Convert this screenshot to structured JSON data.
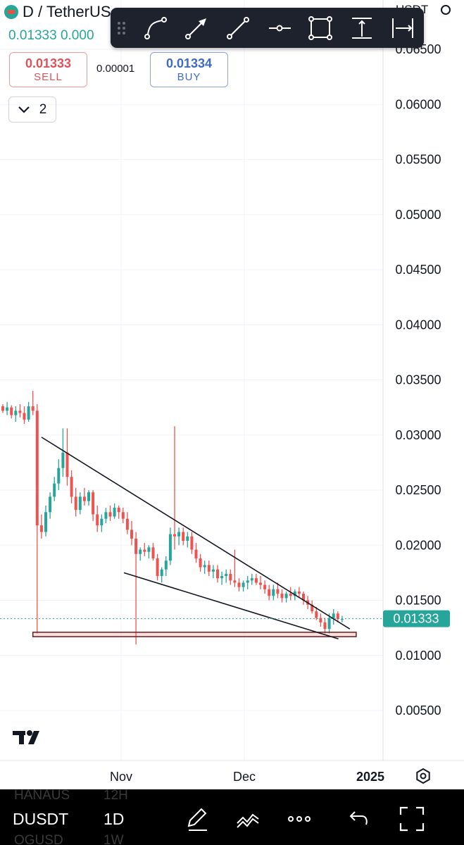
{
  "header": {
    "title": "D / TetherUS",
    "last_price": "0.01333 0.000",
    "sell": {
      "value": "0.01333",
      "label": "SELL"
    },
    "buy": {
      "value": "0.01334",
      "label": "BUY"
    },
    "spread": "0.00001",
    "collapse_count": "2"
  },
  "top_right_label": "USDT",
  "drawing_tools": [
    "path-icon",
    "arrow-line-icon",
    "trend-line-icon",
    "horizontal-ray-icon",
    "rectangle-icon",
    "price-range-icon",
    "date-range-icon"
  ],
  "bottom_bar": {
    "symbol": "DUSDT",
    "interval": "1D",
    "ghost_above": [
      "HANAUS",
      "12H"
    ],
    "ghost_below": [
      "OGUSD",
      "1W"
    ],
    "icons": [
      "draw-pen-icon",
      "indicators-icon",
      "more-icon",
      "undo-icon",
      "fullscreen-icon"
    ]
  },
  "colors": {
    "up": "#26a69a",
    "down": "#ef5350",
    "toolbar": "#1e222d",
    "price_tag": "#26a69a"
  },
  "chart_data": {
    "type": "candlestick",
    "symbol": "D / TetherUS",
    "y_ticks": [
      "0.06500",
      "0.06000",
      "0.05500",
      "0.05000",
      "0.04500",
      "0.04000",
      "0.03500",
      "0.03000",
      "0.02500",
      "0.02000",
      "0.01500",
      "0.01000",
      "0.00500"
    ],
    "ylim": [
      0.0025,
      0.0665
    ],
    "x_ticks": [
      "Nov",
      "Dec",
      "2025"
    ],
    "current_price": "0.01333",
    "candles": [
      [
        0.0326,
        0.0328,
        0.032,
        0.0322
      ],
      [
        0.0322,
        0.033,
        0.0318,
        0.0325
      ],
      [
        0.0325,
        0.0327,
        0.0315,
        0.0318
      ],
      [
        0.0318,
        0.0326,
        0.0312,
        0.0322
      ],
      [
        0.0322,
        0.0328,
        0.0316,
        0.032
      ],
      [
        0.032,
        0.0326,
        0.031,
        0.0314
      ],
      [
        0.0314,
        0.033,
        0.0312,
        0.0326
      ],
      [
        0.0326,
        0.034,
        0.0318,
        0.0322
      ],
      [
        0.0322,
        0.0328,
        0.012,
        0.0218
      ],
      [
        0.0218,
        0.0228,
        0.0206,
        0.0212
      ],
      [
        0.0212,
        0.0236,
        0.0208,
        0.023
      ],
      [
        0.023,
        0.0248,
        0.0224,
        0.0244
      ],
      [
        0.0244,
        0.0262,
        0.024,
        0.0256
      ],
      [
        0.0256,
        0.0278,
        0.025,
        0.027
      ],
      [
        0.027,
        0.0306,
        0.0262,
        0.0284
      ],
      [
        0.0284,
        0.0306,
        0.0254,
        0.0262
      ],
      [
        0.0262,
        0.0268,
        0.0238,
        0.0244
      ],
      [
        0.0244,
        0.0252,
        0.0226,
        0.0232
      ],
      [
        0.0232,
        0.0248,
        0.0228,
        0.0244
      ],
      [
        0.0244,
        0.0252,
        0.0236,
        0.024
      ],
      [
        0.024,
        0.025,
        0.0236,
        0.0248
      ],
      [
        0.0248,
        0.025,
        0.0222,
        0.0228
      ],
      [
        0.0228,
        0.0236,
        0.0212,
        0.0218
      ],
      [
        0.0218,
        0.0228,
        0.0212,
        0.0224
      ],
      [
        0.0224,
        0.0234,
        0.022,
        0.023
      ],
      [
        0.023,
        0.0236,
        0.0222,
        0.0226
      ],
      [
        0.0226,
        0.0238,
        0.0224,
        0.0234
      ],
      [
        0.0234,
        0.0236,
        0.0224,
        0.023
      ],
      [
        0.023,
        0.0234,
        0.022,
        0.0224
      ],
      [
        0.0224,
        0.023,
        0.021,
        0.0214
      ],
      [
        0.0214,
        0.0222,
        0.02,
        0.0206
      ],
      [
        0.0206,
        0.0212,
        0.011,
        0.0192
      ],
      [
        0.0192,
        0.0198,
        0.0186,
        0.0196
      ],
      [
        0.0196,
        0.0202,
        0.019,
        0.0194
      ],
      [
        0.0194,
        0.02,
        0.0188,
        0.0198
      ],
      [
        0.0198,
        0.0202,
        0.0186,
        0.0188
      ],
      [
        0.0188,
        0.0192,
        0.0168,
        0.0172
      ],
      [
        0.0172,
        0.018,
        0.0166,
        0.0178
      ],
      [
        0.0178,
        0.019,
        0.0172,
        0.0186
      ],
      [
        0.0186,
        0.0216,
        0.0182,
        0.021
      ],
      [
        0.021,
        0.0308,
        0.0196,
        0.0208
      ],
      [
        0.0208,
        0.0216,
        0.02,
        0.0212
      ],
      [
        0.0212,
        0.0216,
        0.02,
        0.0204
      ],
      [
        0.0204,
        0.0212,
        0.0198,
        0.0208
      ],
      [
        0.0208,
        0.0212,
        0.0192,
        0.0196
      ],
      [
        0.0196,
        0.0202,
        0.0184,
        0.0188
      ],
      [
        0.0188,
        0.0192,
        0.0176,
        0.018
      ],
      [
        0.018,
        0.0186,
        0.0174,
        0.0182
      ],
      [
        0.0182,
        0.0186,
        0.0172,
        0.0176
      ],
      [
        0.0176,
        0.0182,
        0.017,
        0.0178
      ],
      [
        0.0178,
        0.0182,
        0.0166,
        0.017
      ],
      [
        0.017,
        0.0176,
        0.0164,
        0.0172
      ],
      [
        0.0172,
        0.0178,
        0.0166,
        0.0174
      ],
      [
        0.0174,
        0.0178,
        0.0164,
        0.0168
      ],
      [
        0.0168,
        0.0196,
        0.0162,
        0.0166
      ],
      [
        0.0166,
        0.017,
        0.0158,
        0.0162
      ],
      [
        0.0162,
        0.0168,
        0.0158,
        0.0166
      ],
      [
        0.0166,
        0.0172,
        0.016,
        0.0168
      ],
      [
        0.0168,
        0.0174,
        0.0164,
        0.017
      ],
      [
        0.017,
        0.0174,
        0.0164,
        0.0166
      ],
      [
        0.0166,
        0.0172,
        0.016,
        0.0164
      ],
      [
        0.0164,
        0.0168,
        0.0156,
        0.016
      ],
      [
        0.016,
        0.0164,
        0.015,
        0.0154
      ],
      [
        0.0154,
        0.0164,
        0.015,
        0.016
      ],
      [
        0.016,
        0.0166,
        0.0152,
        0.0156
      ],
      [
        0.0156,
        0.016,
        0.0148,
        0.0152
      ],
      [
        0.0152,
        0.0158,
        0.0148,
        0.0156
      ],
      [
        0.0156,
        0.0162,
        0.015,
        0.0154
      ],
      [
        0.0154,
        0.016,
        0.015,
        0.0158
      ],
      [
        0.0158,
        0.0162,
        0.0152,
        0.0156
      ],
      [
        0.0156,
        0.0158,
        0.0146,
        0.015
      ],
      [
        0.015,
        0.0154,
        0.0142,
        0.0146
      ],
      [
        0.0146,
        0.015,
        0.0138,
        0.014
      ],
      [
        0.014,
        0.0144,
        0.0132,
        0.0134
      ],
      [
        0.0134,
        0.0138,
        0.0126,
        0.013
      ],
      [
        0.013,
        0.0134,
        0.012,
        0.0124
      ],
      [
        0.0124,
        0.0138,
        0.012,
        0.0134
      ],
      [
        0.0134,
        0.0142,
        0.0128,
        0.0138
      ],
      [
        0.0138,
        0.014,
        0.013,
        0.0133
      ],
      [
        0.0133,
        0.0136,
        0.013,
        0.0133
      ]
    ],
    "upper_trendline": [
      [
        0,
        0.0298
      ],
      [
        78,
        0.0124
      ]
    ],
    "lower_trendline": [
      [
        20,
        0.0175
      ],
      [
        76,
        0.0115
      ]
    ],
    "support_zone": [
      0.0117,
      0.0121
    ]
  }
}
